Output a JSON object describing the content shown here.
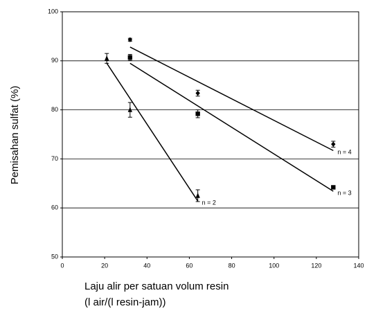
{
  "chart_data": {
    "type": "scatter",
    "xlabel": [
      "Laju alir per satuan volum resin",
      "(l air/(l resin-jam))"
    ],
    "ylabel": "Pemisahan sulfat (%)",
    "xlim": [
      0,
      140
    ],
    "xticks": [
      0,
      20,
      40,
      60,
      80,
      100,
      120,
      140
    ],
    "ylim": [
      50,
      100
    ],
    "yticks": [
      50,
      60,
      70,
      80,
      90,
      100
    ],
    "grid": true,
    "series": [
      {
        "name": "n = 2",
        "color": "#000000",
        "marker": "triangle",
        "x": [
          21,
          32,
          64
        ],
        "values": [
          90.5,
          80,
          62.5
        ],
        "errors": [
          1,
          1.5,
          1.2
        ],
        "trend": {
          "x": [
            21,
            64
          ],
          "values": [
            89.5,
            61.4
          ]
        }
      },
      {
        "name": "n = 3",
        "color": "#000000",
        "marker": "square",
        "x": [
          32,
          64,
          128
        ],
        "values": [
          90.7,
          79.2,
          64.2
        ],
        "errors": [
          0.6,
          0.8,
          0.3
        ],
        "trend": {
          "x": [
            32,
            128
          ],
          "values": [
            89.5,
            63.4
          ]
        }
      },
      {
        "name": "n = 4",
        "color": "#000000",
        "marker": "diamond",
        "x": [
          32,
          64,
          128
        ],
        "values": [
          94.3,
          83.4,
          73
        ],
        "errors": [
          0.3,
          0.6,
          0.6
        ],
        "trend": {
          "x": [
            32,
            128
          ],
          "values": [
            92.8,
            71.7
          ]
        }
      }
    ]
  }
}
